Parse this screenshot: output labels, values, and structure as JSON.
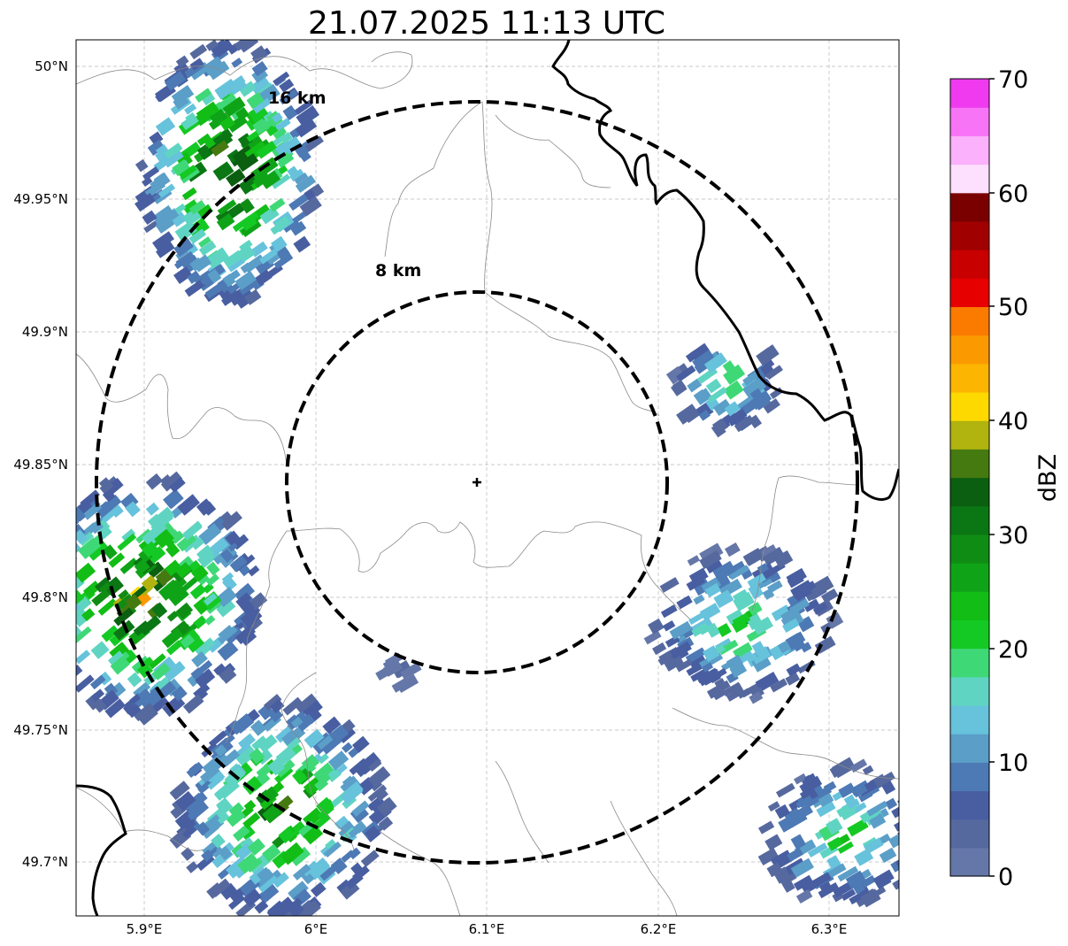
{
  "title": "21.07.2025 11:13 UTC",
  "map": {
    "lon_ticks": [
      "5.9°E",
      "6°E",
      "6.1°E",
      "6.2°E",
      "6.3°E"
    ],
    "lat_ticks": [
      "50°N",
      "49.95°N",
      "49.9°N",
      "49.85°N",
      "49.8°N",
      "49.75°N",
      "49.7°N"
    ],
    "range_rings": [
      {
        "label": "8 km",
        "radius_km": 8
      },
      {
        "label": "16 km",
        "radius_km": 16
      }
    ],
    "radar_site": {
      "lon": 6.095,
      "lat": 49.843
    },
    "reflectivity_cells": [
      {
        "region": "north-west",
        "lon": 5.95,
        "lat": 49.96,
        "max_dbz": 42
      },
      {
        "region": "west",
        "lon": 5.9,
        "lat": 49.8,
        "max_dbz": 42
      },
      {
        "region": "south-west",
        "lon": 5.98,
        "lat": 49.72,
        "max_dbz": 35
      },
      {
        "region": "north-east",
        "lon": 6.24,
        "lat": 49.88,
        "max_dbz": 25
      },
      {
        "region": "east",
        "lon": 6.25,
        "lat": 49.79,
        "max_dbz": 25
      },
      {
        "region": "south-east",
        "lon": 6.31,
        "lat": 49.71,
        "max_dbz": 25
      },
      {
        "region": "south-centre",
        "lon": 6.05,
        "lat": 49.77,
        "max_dbz": 5
      }
    ]
  },
  "colorbar": {
    "label": "dBZ",
    "ticks": [
      "0",
      "10",
      "20",
      "30",
      "40",
      "50",
      "60",
      "70"
    ],
    "colors": [
      "#6577a8",
      "#56699f",
      "#485ea1",
      "#4d79b4",
      "#5b9ec8",
      "#67c2dc",
      "#5fd4c2",
      "#3fd877",
      "#14c923",
      "#12bd15",
      "#0fa417",
      "#0f8c14",
      "#0b7614",
      "#0b5f10",
      "#457a10",
      "#b1b30e",
      "#fdd900",
      "#fcb500",
      "#fb9a00",
      "#fa7b00",
      "#e60000",
      "#c80000",
      "#a00000",
      "#7a0000",
      "#fde0fd",
      "#fbb1fb",
      "#f774f7",
      "#ef3aef"
    ]
  }
}
